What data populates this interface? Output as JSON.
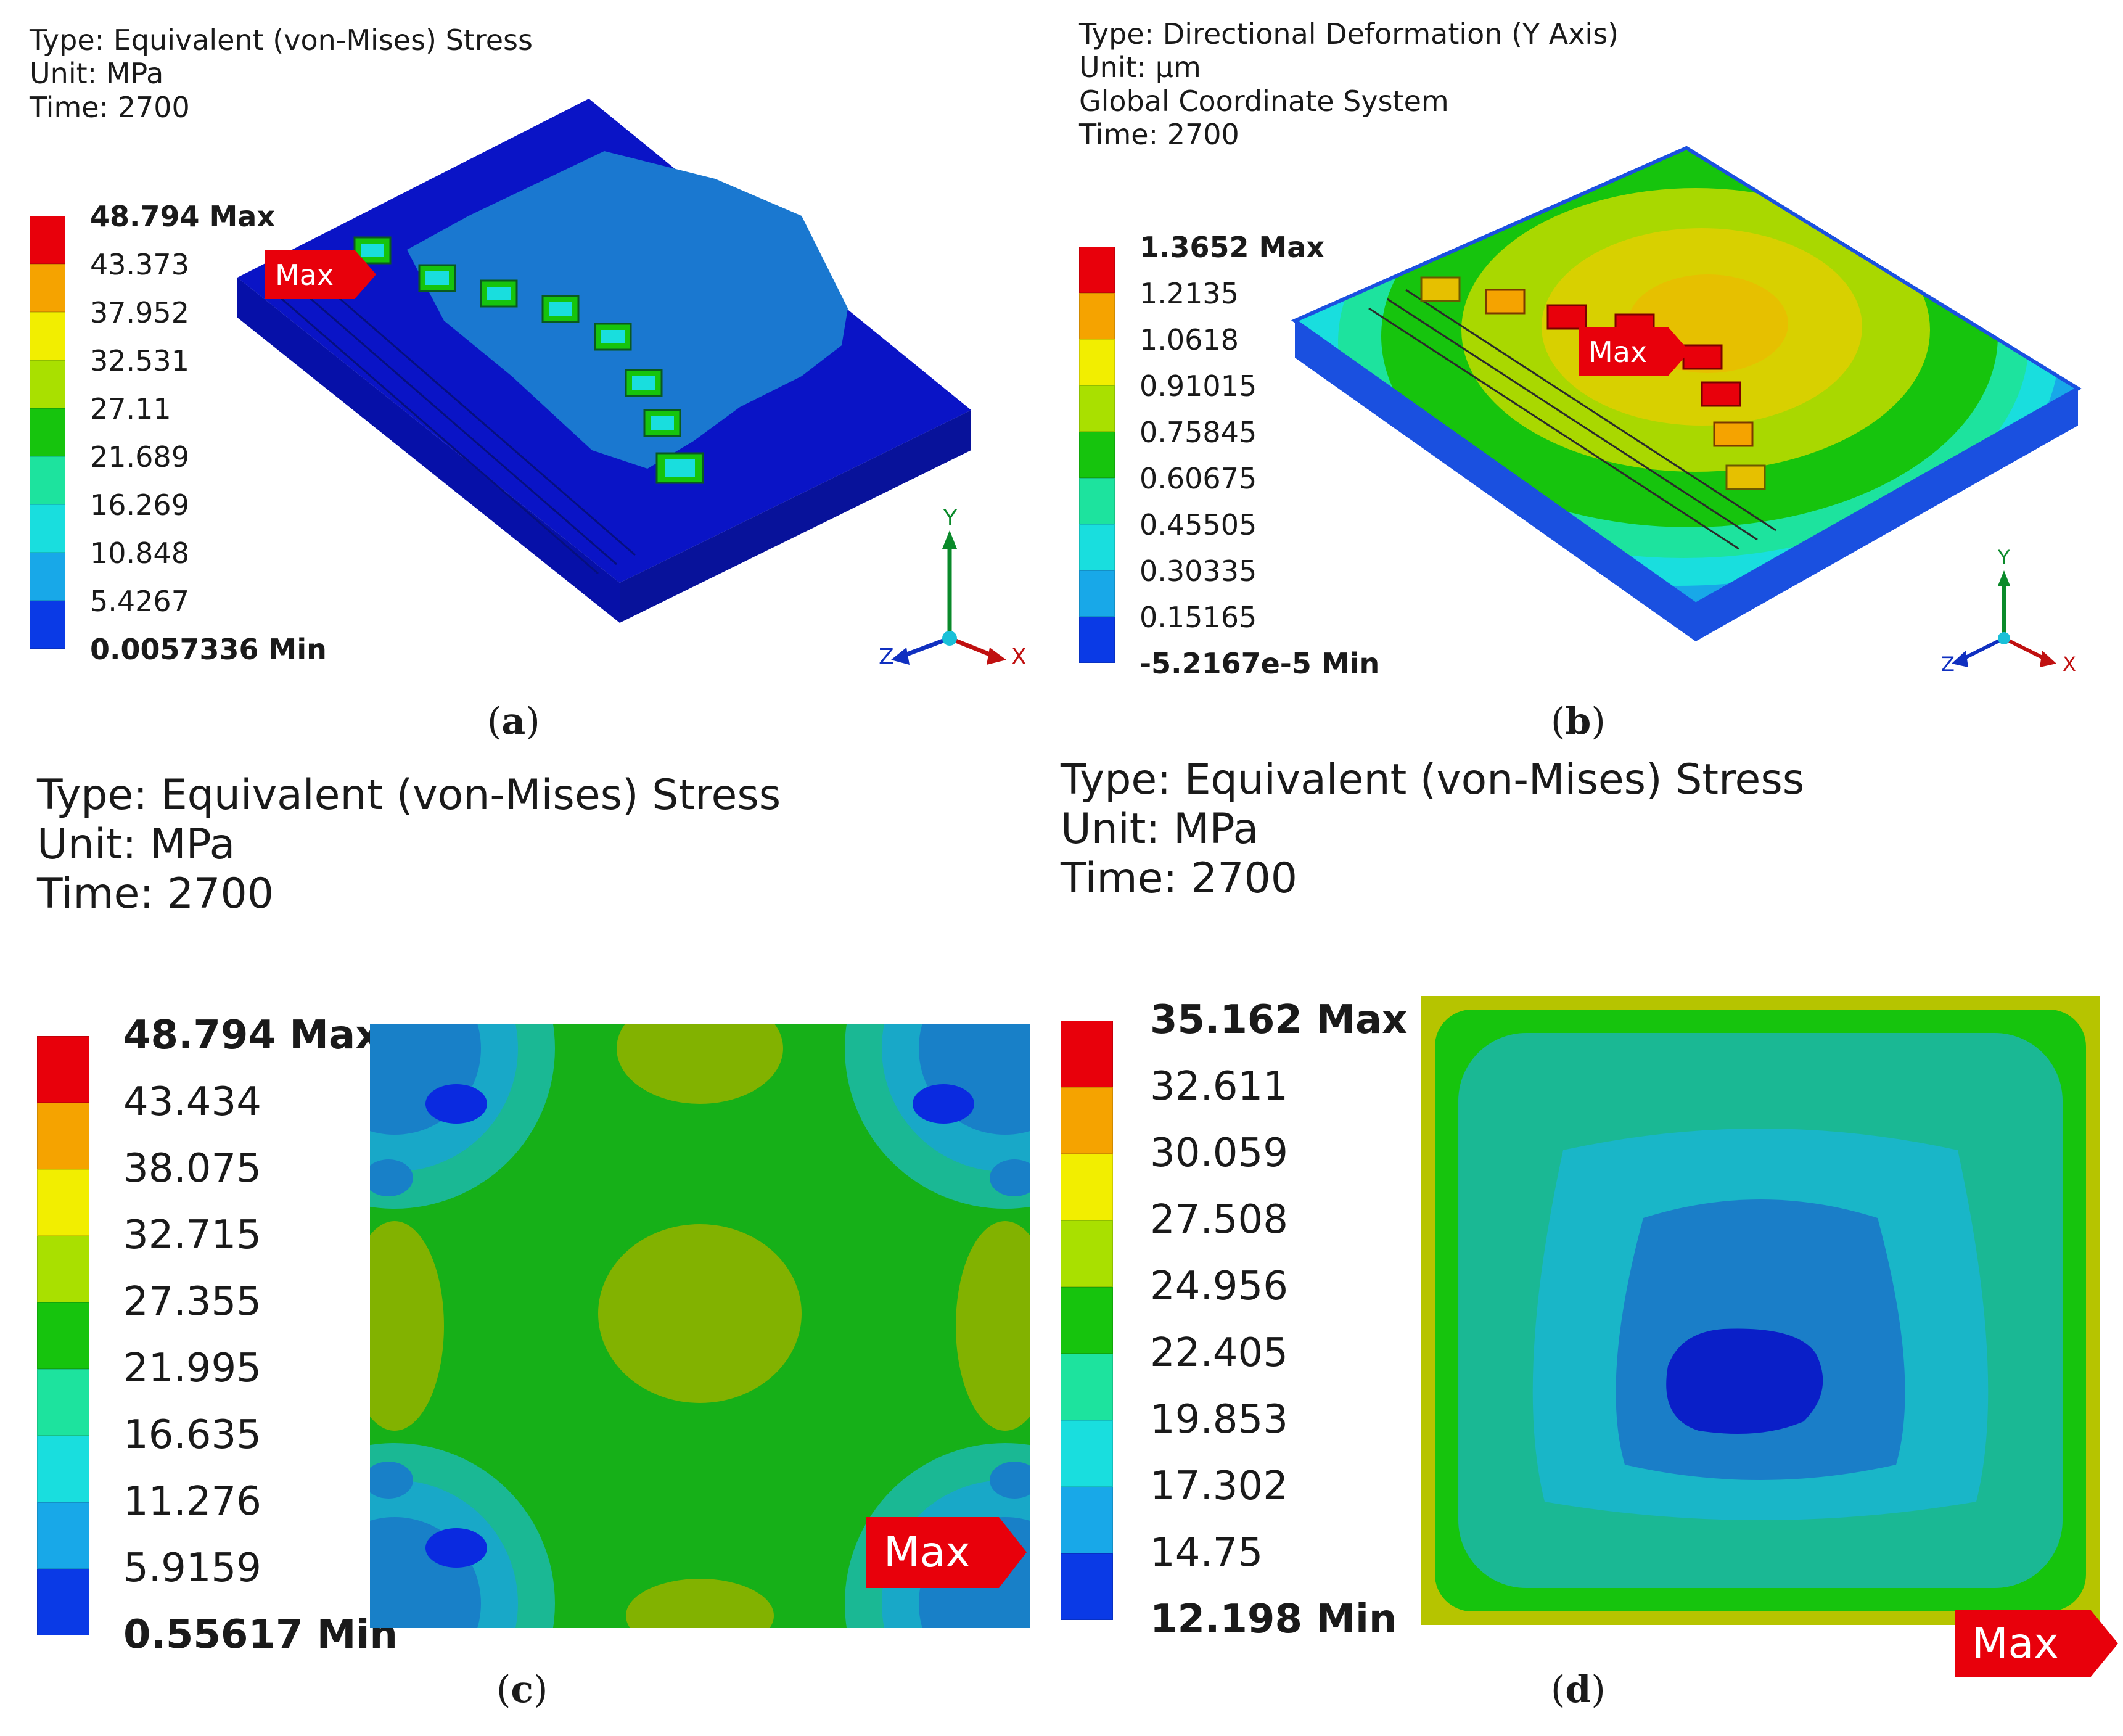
{
  "panels": [
    {
      "id": "a",
      "caption_letter": "a",
      "header": [
        "Type: Equivalent (von-Mises) Stress",
        "Unit: MPa",
        "Time: 2700"
      ],
      "legend": [
        "48.794 Max",
        "43.373",
        "37.952",
        "32.531",
        "27.11",
        "21.689",
        "16.269",
        "10.848",
        "5.4267",
        "0.0057336 Min"
      ],
      "max_marker": "Max",
      "axes": {
        "y": "Y",
        "x": "X",
        "z": "Z"
      }
    },
    {
      "id": "b",
      "caption_letter": "b",
      "header": [
        "Type: Directional Deformation (Y Axis)",
        "Unit: μm",
        "Global Coordinate System",
        "Time: 2700"
      ],
      "legend": [
        "1.3652 Max",
        "1.2135",
        "1.0618",
        "0.91015",
        "0.75845",
        "0.60675",
        "0.45505",
        "0.30335",
        "0.15165",
        "-5.2167e-5 Min"
      ],
      "max_marker": "Max",
      "axes": {
        "y": "Y",
        "x": "X",
        "z": "Z"
      }
    },
    {
      "id": "c",
      "caption_letter": "c",
      "header": [
        "Type: Equivalent (von-Mises) Stress",
        "Unit: MPa",
        "Time: 2700"
      ],
      "legend": [
        "48.794 Max",
        "43.434",
        "38.075",
        "32.715",
        "27.355",
        "21.995",
        "16.635",
        "11.276",
        "5.9159",
        "0.55617 Min"
      ],
      "max_marker": "Max"
    },
    {
      "id": "d",
      "caption_letter": "d",
      "header": [
        "Type: Equivalent (von-Mises) Stress",
        "Unit: MPa",
        "Time: 2700"
      ],
      "legend": [
        "35.162 Max",
        "32.611",
        "30.059",
        "27.508",
        "24.956",
        "22.405",
        "19.853",
        "17.302",
        "14.75",
        "12.198 Min"
      ],
      "max_marker": "Max"
    }
  ],
  "colormap": [
    "#e8000b",
    "#f5a300",
    "#f2ee00",
    "#a9e000",
    "#16c40d",
    "#1de39e",
    "#19dede",
    "#18a8e8",
    "#0a3ae6"
  ]
}
